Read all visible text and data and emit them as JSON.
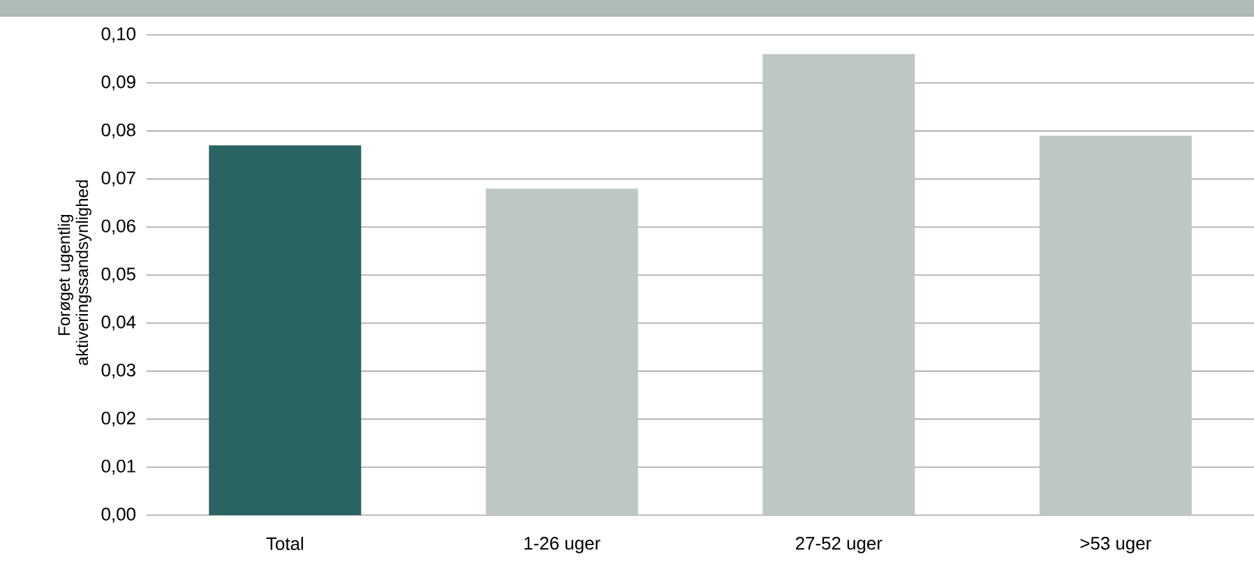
{
  "chart_data": {
    "type": "bar",
    "ylabel": "Forøget ugentlig aktiveringssandsynlighed",
    "categories": [
      "Total",
      "1-26 uger",
      "27-52 uger",
      ">53 uger"
    ],
    "values": [
      0.077,
      0.068,
      0.096,
      0.079
    ],
    "colors": [
      "#2a6462",
      "#bdc7c4",
      "#bdc7c4",
      "#bdc7c4"
    ],
    "ylim": [
      0,
      0.1
    ],
    "yticks": [
      {
        "value": 0,
        "label": "0,00"
      },
      {
        "value": 0.01,
        "label": "0,01"
      },
      {
        "value": 0.02,
        "label": "0,02"
      },
      {
        "value": 0.03,
        "label": "0,03"
      },
      {
        "value": 0.04,
        "label": "0,04"
      },
      {
        "value": 0.05,
        "label": "0,05"
      },
      {
        "value": 0.06,
        "label": "0,06"
      },
      {
        "value": 0.07,
        "label": "0,07"
      },
      {
        "value": 0.08,
        "label": "0,08"
      },
      {
        "value": 0.09,
        "label": "0,09"
      },
      {
        "value": 0.1,
        "label": "0,10"
      }
    ],
    "grid": "y"
  }
}
